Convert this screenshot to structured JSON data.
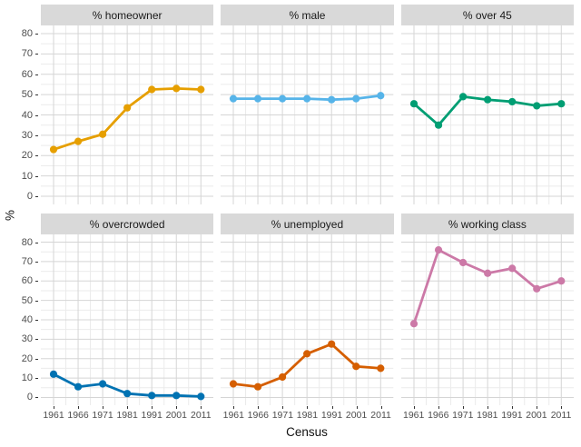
{
  "chart_data": {
    "type": "line",
    "layout": "facet-grid-2x3",
    "xlabel": "Census",
    "ylabel": "%",
    "x_categories": [
      "1961",
      "1966",
      "1971",
      "1981",
      "1991",
      "2001",
      "2011"
    ],
    "y_ticks": [
      "0",
      "10",
      "20",
      "30",
      "40",
      "50",
      "60",
      "70",
      "80"
    ],
    "ylim": [
      0,
      80
    ],
    "grid": {
      "on": true,
      "major_color": "#d5d5d5",
      "minor_color": "#ebebeb"
    },
    "panel_bg": "#ffffff",
    "strip_bg": "#d9d9d9",
    "legend": "none",
    "facets": [
      {
        "title": "% homeowner",
        "color": "#E69F00",
        "values": [
          23,
          27,
          30.5,
          43.5,
          52.5,
          53,
          52.5
        ]
      },
      {
        "title": "% male",
        "color": "#56B4E9",
        "values": [
          48,
          48,
          48,
          48,
          47.5,
          48,
          49.5
        ]
      },
      {
        "title": "% over 45",
        "color": "#009E73",
        "values": [
          45.5,
          35,
          49,
          47.5,
          46.5,
          44.5,
          45.5
        ]
      },
      {
        "title": "% overcrowded",
        "color": "#0072B2",
        "values": [
          12,
          5.5,
          7,
          2,
          1,
          1,
          0.5
        ]
      },
      {
        "title": "% unemployed",
        "color": "#D55E00",
        "values": [
          7,
          5.5,
          10.5,
          22.5,
          27.5,
          16,
          15
        ]
      },
      {
        "title": "% working class",
        "color": "#CC79A7",
        "values": [
          38,
          76,
          69.5,
          64,
          66.5,
          56,
          60
        ]
      }
    ]
  }
}
